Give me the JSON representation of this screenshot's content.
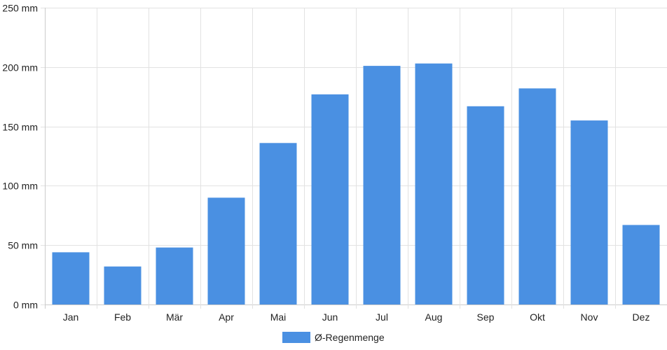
{
  "chart_data": {
    "type": "bar",
    "categories": [
      "Jan",
      "Feb",
      "Mär",
      "Apr",
      "Mai",
      "Jun",
      "Jul",
      "Aug",
      "Sep",
      "Okt",
      "Nov",
      "Dez"
    ],
    "series": [
      {
        "name": "Ø-Regenmenge",
        "values": [
          44,
          32,
          48,
          90,
          136,
          177,
          201,
          203,
          167,
          182,
          155,
          67
        ]
      }
    ],
    "ylim": [
      0,
      250
    ],
    "yticks": [
      0,
      50,
      100,
      150,
      200,
      250
    ],
    "ytick_labels": [
      "0 mm",
      "50 mm",
      "100 mm",
      "150 mm",
      "200 mm",
      "250 mm"
    ],
    "y_unit": "mm",
    "grid": true,
    "legend_position": "bottom",
    "colors": {
      "bar": "#4a90e2",
      "grid": "#e2e2e2",
      "axis": "#cccccc",
      "text": "#222222"
    }
  }
}
